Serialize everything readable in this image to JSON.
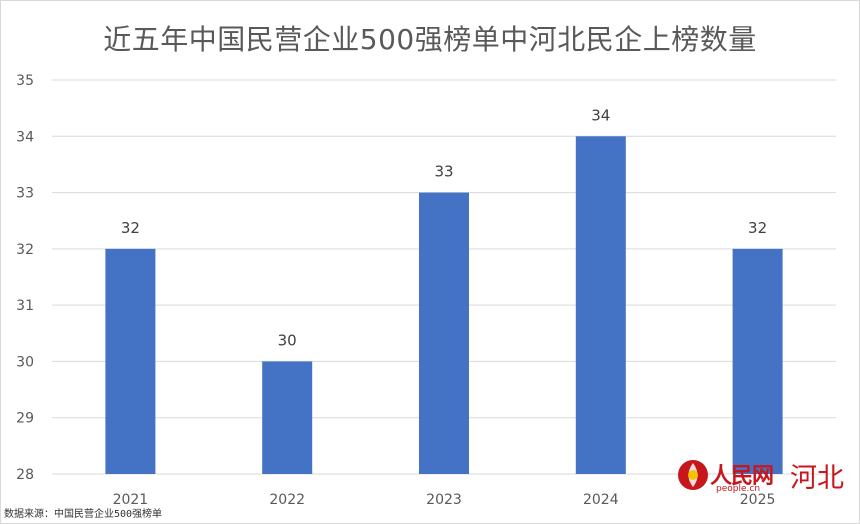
{
  "chart_data": {
    "type": "bar",
    "title": "近五年中国民营企业500强榜单中河北民企上榜数量",
    "categories": [
      "2021",
      "2022",
      "2023",
      "2024",
      "2025"
    ],
    "values": [
      32,
      30,
      33,
      34,
      32
    ],
    "xlabel": "",
    "ylabel": "",
    "ylim": [
      28,
      35
    ],
    "yticks": [
      28,
      29,
      30,
      31,
      32,
      33,
      34,
      35
    ],
    "grid": true,
    "legend": "none",
    "bar_color": "#4472c4",
    "data_labels": true
  },
  "source": "数据来源：中国民营企业500强榜单",
  "logo": {
    "brand": "人民网",
    "url": "people.cn",
    "region": "河北",
    "icon": "people-daily-logo-icon",
    "color": "#c8161d"
  }
}
